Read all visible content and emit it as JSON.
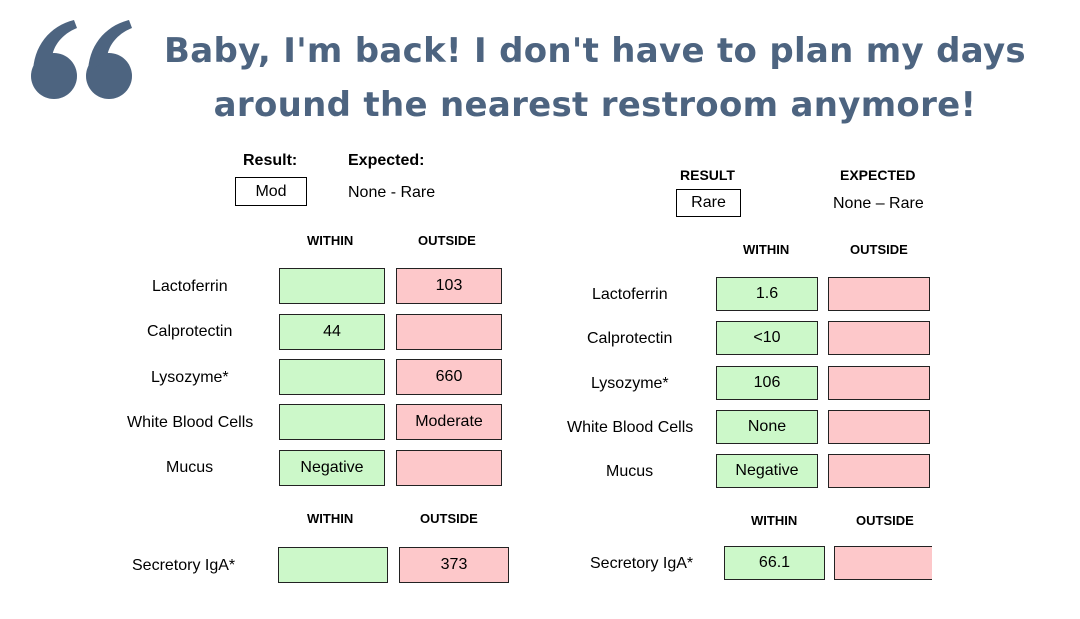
{
  "headline": {
    "line1": "Baby, I'm back! I don't have to plan my days",
    "line2": "around the nearest restroom anymore!",
    "color": "#4d6480"
  },
  "left_report": {
    "result_label": "Result:",
    "expected_label": "Expected:",
    "result_value": "Mod",
    "expected_value": "None - Rare",
    "within_header": "WITHIN",
    "outside_header": "OUTSIDE",
    "rows": [
      {
        "label": "Lactoferrin",
        "within": "",
        "outside": "103"
      },
      {
        "label": "Calprotectin",
        "within": "44",
        "outside": ""
      },
      {
        "label": "Lysozyme*",
        "within": "",
        "outside": "660"
      },
      {
        "label": "White Blood Cells",
        "within": "",
        "outside": "Moderate"
      },
      {
        "label": "Mucus",
        "within": "Negative",
        "outside": ""
      }
    ],
    "within_header_2": "WITHIN",
    "outside_header_2": "OUTSIDE",
    "iga": {
      "label": "Secretory IgA*",
      "within": "",
      "outside": "373"
    }
  },
  "right_report": {
    "result_label": "RESULT",
    "expected_label": "EXPECTED",
    "result_value": "Rare",
    "expected_value": "None – Rare",
    "within_header": "WITHIN",
    "outside_header": "OUTSIDE",
    "rows": [
      {
        "label": "Lactoferrin",
        "within": "1.6",
        "outside": ""
      },
      {
        "label": "Calprotectin",
        "within": "<10",
        "outside": ""
      },
      {
        "label": "Lysozyme*",
        "within": "106",
        "outside": ""
      },
      {
        "label": "White Blood Cells",
        "within": "None",
        "outside": ""
      },
      {
        "label": "Mucus",
        "within": "Negative",
        "outside": ""
      }
    ],
    "within_header_2": "WITHIN",
    "outside_header_2": "OUTSIDE",
    "iga": {
      "label": "Secretory IgA*",
      "within": "66.1",
      "outside": ""
    }
  },
  "colors": {
    "within": "#ccf8c9",
    "outside": "#fdc8ca"
  },
  "icons": {
    "quote": "opening-quote-icon"
  }
}
